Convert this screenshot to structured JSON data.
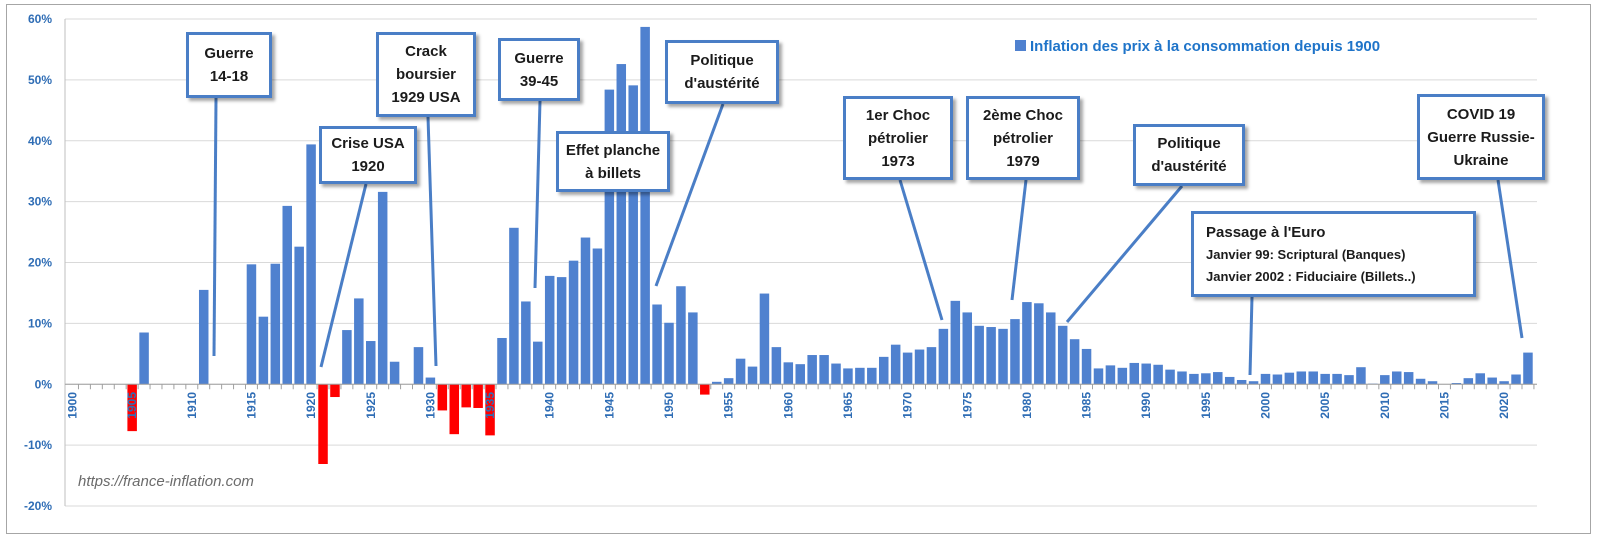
{
  "chart_data": {
    "type": "bar",
    "title": "Inflation des prix à la consommation depuis 1900",
    "xlabel": "",
    "ylabel": "",
    "ylim": [
      -0.2,
      0.6
    ],
    "source_label": "https://france-inflation.com",
    "colors": {
      "positive": "#4f81cf",
      "negative": "#ff0000",
      "axis_text": "#2f6db5",
      "legend_text": "#1f74c9",
      "gridline": "#d9d9d9",
      "box_border": "#4a7ec6"
    },
    "y_ticks": [
      {
        "value": 0.6,
        "label": "60%"
      },
      {
        "value": 0.5,
        "label": "50%"
      },
      {
        "value": 0.4,
        "label": "40%"
      },
      {
        "value": 0.3,
        "label": "30%"
      },
      {
        "value": 0.2,
        "label": "20%"
      },
      {
        "value": 0.1,
        "label": "10%"
      },
      {
        "value": 0.0,
        "label": "0%"
      },
      {
        "value": -0.1,
        "label": "-10%"
      },
      {
        "value": -0.2,
        "label": "-20%"
      }
    ],
    "x_ticks": [
      "1900",
      "1905",
      "1910",
      "1915",
      "1920",
      "1925",
      "1930",
      "1935",
      "1940",
      "1945",
      "1950",
      "1955",
      "1960",
      "1965",
      "1970",
      "1975",
      "1980",
      "1985",
      "1990",
      "1995",
      "2000",
      "2005",
      "2010",
      "2015",
      "2020"
    ],
    "years": [
      1900,
      1901,
      1902,
      1903,
      1904,
      1905,
      1906,
      1907,
      1908,
      1909,
      1910,
      1911,
      1912,
      1913,
      1914,
      1915,
      1916,
      1917,
      1918,
      1919,
      1920,
      1921,
      1922,
      1923,
      1924,
      1925,
      1926,
      1927,
      1928,
      1929,
      1930,
      1931,
      1932,
      1933,
      1934,
      1935,
      1936,
      1937,
      1938,
      1939,
      1940,
      1941,
      1942,
      1943,
      1944,
      1945,
      1946,
      1947,
      1948,
      1949,
      1950,
      1951,
      1952,
      1953,
      1954,
      1955,
      1956,
      1957,
      1958,
      1959,
      1960,
      1961,
      1962,
      1963,
      1964,
      1965,
      1966,
      1967,
      1968,
      1969,
      1970,
      1971,
      1972,
      1973,
      1974,
      1975,
      1976,
      1977,
      1978,
      1979,
      1980,
      1981,
      1982,
      1983,
      1984,
      1985,
      1986,
      1987,
      1988,
      1989,
      1990,
      1991,
      1992,
      1993,
      1994,
      1995,
      1996,
      1997,
      1998,
      1999,
      2000,
      2001,
      2002,
      2003,
      2004,
      2005,
      2006,
      2007,
      2008,
      2009,
      2010,
      2011,
      2012,
      2013,
      2014,
      2015,
      2016,
      2017,
      2018,
      2019,
      2020,
      2021,
      2022
    ],
    "values": [
      0,
      0,
      0,
      0,
      0,
      -0.077,
      0.085,
      0,
      0,
      0,
      0,
      0.155,
      0,
      0,
      0,
      0.197,
      0.111,
      0.198,
      0.293,
      0.226,
      0.394,
      -0.131,
      -0.021,
      0.089,
      0.141,
      0.071,
      0.316,
      0.037,
      0,
      0.061,
      0.011,
      -0.043,
      -0.082,
      -0.038,
      -0.039,
      -0.084,
      0.076,
      0.257,
      0.136,
      0.07,
      0.178,
      0.176,
      0.203,
      0.241,
      0.223,
      0.484,
      0.526,
      0.491,
      0.587,
      0.131,
      0.101,
      0.161,
      0.118,
      -0.017,
      0.004,
      0.01,
      0.042,
      0.029,
      0.149,
      0.061,
      0.036,
      0.033,
      0.048,
      0.048,
      0.034,
      0.026,
      0.027,
      0.027,
      0.045,
      0.065,
      0.052,
      0.057,
      0.061,
      0.091,
      0.137,
      0.118,
      0.096,
      0.094,
      0.091,
      0.107,
      0.135,
      0.133,
      0.118,
      0.096,
      0.074,
      0.058,
      0.026,
      0.031,
      0.027,
      0.035,
      0.034,
      0.032,
      0.024,
      0.021,
      0.017,
      0.018,
      0.02,
      0.012,
      0.007,
      0.005,
      0.017,
      0.016,
      0.019,
      0.021,
      0.021,
      0.017,
      0.017,
      0.015,
      0.028,
      0.001,
      0.015,
      0.021,
      0.02,
      0.009,
      0.005,
      0.0,
      0.002,
      0.01,
      0.018,
      0.011,
      0.005,
      0.016,
      0.052
    ]
  },
  "annotations": [
    {
      "id": "guerre-14-18",
      "lines": [
        "Guerre",
        "14-18"
      ]
    },
    {
      "id": "crise-usa-1920",
      "lines": [
        "Crise USA",
        "1920"
      ]
    },
    {
      "id": "crack-1929",
      "lines": [
        "Crack",
        "boursier",
        "1929  USA"
      ]
    },
    {
      "id": "guerre-39-45",
      "lines": [
        "Guerre",
        "39-45"
      ]
    },
    {
      "id": "effet-planche",
      "lines": [
        "Effet planche",
        "à billets"
      ]
    },
    {
      "id": "austerite-1",
      "lines": [
        "Politique",
        "d'austérité"
      ]
    },
    {
      "id": "choc-1973",
      "lines": [
        "1er Choc",
        "pétrolier",
        "1973"
      ]
    },
    {
      "id": "choc-1979",
      "lines": [
        "2ème Choc",
        "pétrolier",
        "1979"
      ]
    },
    {
      "id": "austerite-2",
      "lines": [
        "Politique",
        "d'austérité"
      ]
    },
    {
      "id": "euro",
      "title": "Passage à l'Euro",
      "lines": [
        "Janvier  99: Scriptural  (Banques)",
        "Janvier  2002 : Fiduciaire  (Billets..)"
      ]
    },
    {
      "id": "covid",
      "lines": [
        "COVID 19",
        "Guerre Russie-",
        "Ukraine"
      ]
    }
  ]
}
